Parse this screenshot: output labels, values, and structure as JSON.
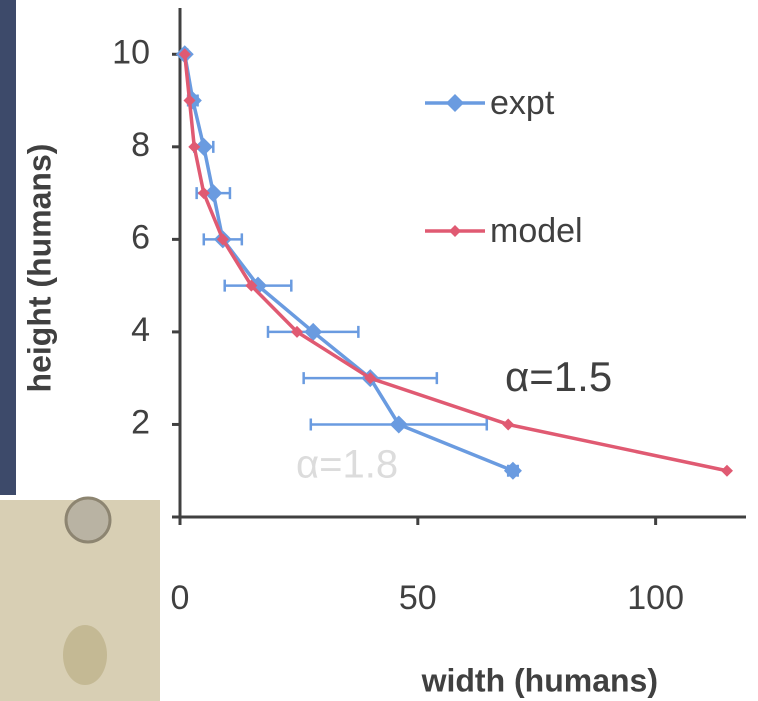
{
  "chart_data": {
    "type": "line",
    "x_label": "width (humans)",
    "y_label": "height (humans)",
    "xlim": [
      0,
      119
    ],
    "ylim": [
      0,
      11
    ],
    "xticks": [
      0,
      50,
      100
    ],
    "yticks": [
      2,
      4,
      6,
      8,
      10
    ],
    "series": [
      {
        "name": "expt",
        "color": "#6a9be0",
        "x": [
          1,
          2.7,
          5,
          7,
          9,
          16.4,
          28,
          40,
          46,
          70
        ],
        "values": [
          10,
          9,
          8,
          7,
          6,
          5,
          4,
          3,
          2,
          1
        ],
        "xerr": [
          0.5,
          1,
          2,
          3.5,
          4,
          7,
          9.5,
          14,
          18.5,
          1
        ]
      },
      {
        "name": "model",
        "color": "#e05a72",
        "x": [
          1,
          2,
          3,
          5,
          9,
          15,
          24.6,
          40,
          69,
          115
        ],
        "values": [
          10,
          9,
          8,
          7,
          6,
          5,
          4,
          3,
          2,
          1
        ]
      }
    ],
    "annotations": [
      "α=1.5",
      "α=1.8"
    ]
  }
}
